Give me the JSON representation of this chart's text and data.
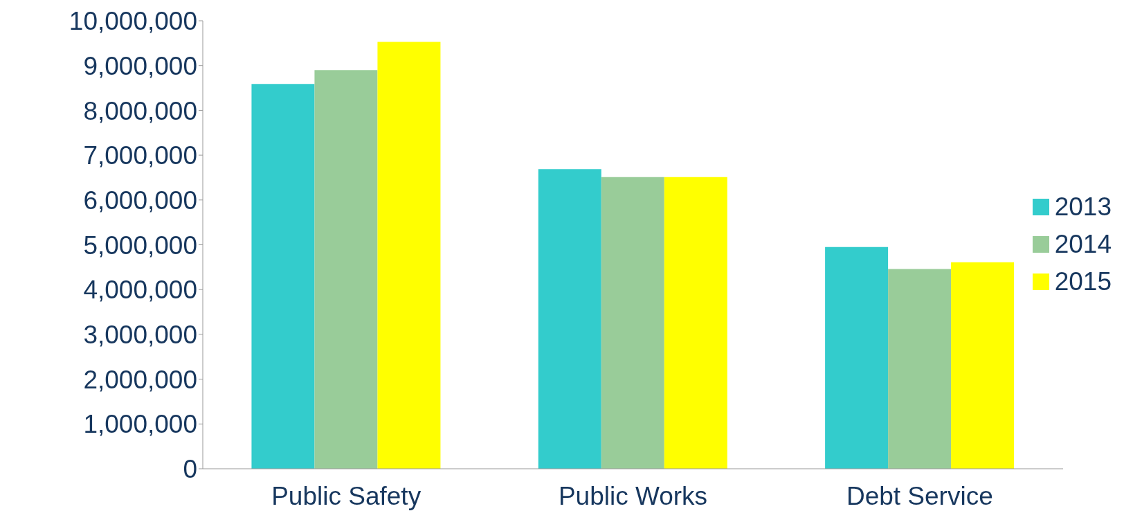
{
  "chart_data": {
    "type": "bar",
    "categories": [
      "Public Safety",
      "Public Works",
      "Debt Service"
    ],
    "series": [
      {
        "name": "2013",
        "color": "#33cccc",
        "values": [
          8590000,
          6690000,
          4950000
        ]
      },
      {
        "name": "2014",
        "color": "#99cc99",
        "values": [
          8900000,
          6510000,
          4460000
        ]
      },
      {
        "name": "2015",
        "color": "#ffff00",
        "values": [
          9530000,
          6510000,
          4610000
        ]
      }
    ],
    "ylim": [
      0,
      10000000
    ],
    "yticks": [
      0,
      {
        "value": 1000000,
        "label": "1,000,000"
      },
      {
        "value": 2000000,
        "label": "2,000,000"
      },
      {
        "value": 3000000,
        "label": "3,000,000"
      },
      {
        "value": 4000000,
        "label": "4,000,000"
      },
      {
        "value": 5000000,
        "label": "5,000,000"
      },
      {
        "value": 6000000,
        "label": "6,000,000"
      },
      {
        "value": 7000000,
        "label": "7,000,000"
      },
      {
        "value": 8000000,
        "label": "8,000,000"
      },
      {
        "value": 9000000,
        "label": "9,000,000"
      },
      {
        "value": 10000000,
        "label": "10,000,000"
      }
    ],
    "grid": false,
    "legend": "right"
  }
}
